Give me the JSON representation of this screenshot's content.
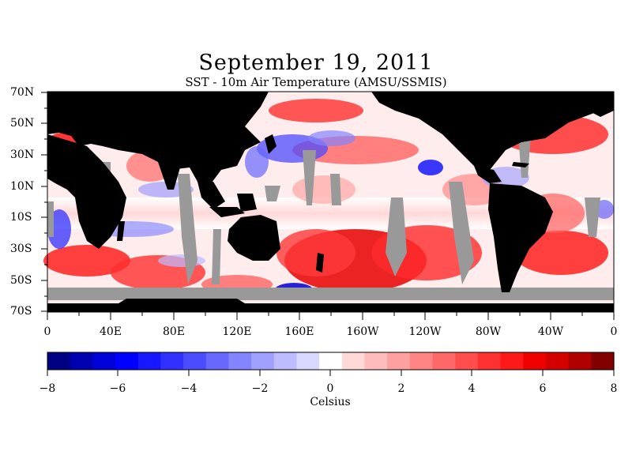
{
  "title": "September 19, 2011",
  "subtitle": "SST - 10m Air Temperature (AMSU/SSMIS)",
  "map": {
    "lat_labels": [
      "70N",
      "50N",
      "30N",
      "10N",
      "10S",
      "30S",
      "50S",
      "70S"
    ],
    "lon_labels": [
      "0",
      "40E",
      "80E",
      "120E",
      "160E",
      "160W",
      "120W",
      "80W",
      "40W",
      "0"
    ],
    "colors": {
      "land": "#000000",
      "missing": "#999999"
    }
  },
  "colorbar": {
    "unit": "Celsius",
    "tick_labels": [
      "−8",
      "−6",
      "−4",
      "−2",
      "0",
      "2",
      "4",
      "6",
      "8"
    ],
    "min": -8,
    "max": 8,
    "colors": [
      "#000082",
      "#0000b0",
      "#0000d8",
      "#0000ff",
      "#1818ff",
      "#3030ff",
      "#4c4cff",
      "#6868ff",
      "#8484ff",
      "#a0a0ff",
      "#bcbcff",
      "#d8d8ff",
      "#ffffff",
      "#ffd8d8",
      "#ffbcbc",
      "#ffa0a0",
      "#ff8484",
      "#ff6868",
      "#ff4c4c",
      "#ff3030",
      "#ff1818",
      "#f00000",
      "#d40000",
      "#b00000",
      "#820000"
    ]
  }
}
